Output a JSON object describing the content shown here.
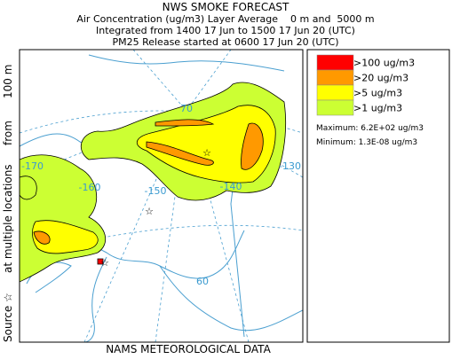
{
  "header": {
    "title": "NWS SMOKE FORECAST",
    "lines": [
      "Air Concentration (ug/m3) Layer Average    0 m and  5000 m",
      "Integrated from 1400 17 Jun to 1500 17 Jun 20 (UTC)",
      "PM25 Release started at 0600 17 Jun 20 (UTC)"
    ]
  },
  "side_label": [
    "Source ☆",
    "at multiple locations",
    "from",
    "100 m"
  ],
  "legend": {
    "items": [
      {
        "label": ">100 ug/m3",
        "color": "#ff0000"
      },
      {
        "label": ">20 ug/m3",
        "color": "#ff9900"
      },
      {
        "label": ">5 ug/m3",
        "color": "#ffff00"
      },
      {
        "label": ">1 ug/m3",
        "color": "#ccff33"
      }
    ],
    "maximum": "Maximum: 6.2E+02 ug/m3",
    "minimum": "Minimum: 1.3E-08 ug/m3"
  },
  "map": {
    "grid_labels": [
      "70",
      "-170",
      "-160",
      "-150",
      "-140",
      "-130",
      "60"
    ]
  },
  "footer": "NAMS METEOROLOGICAL DATA"
}
